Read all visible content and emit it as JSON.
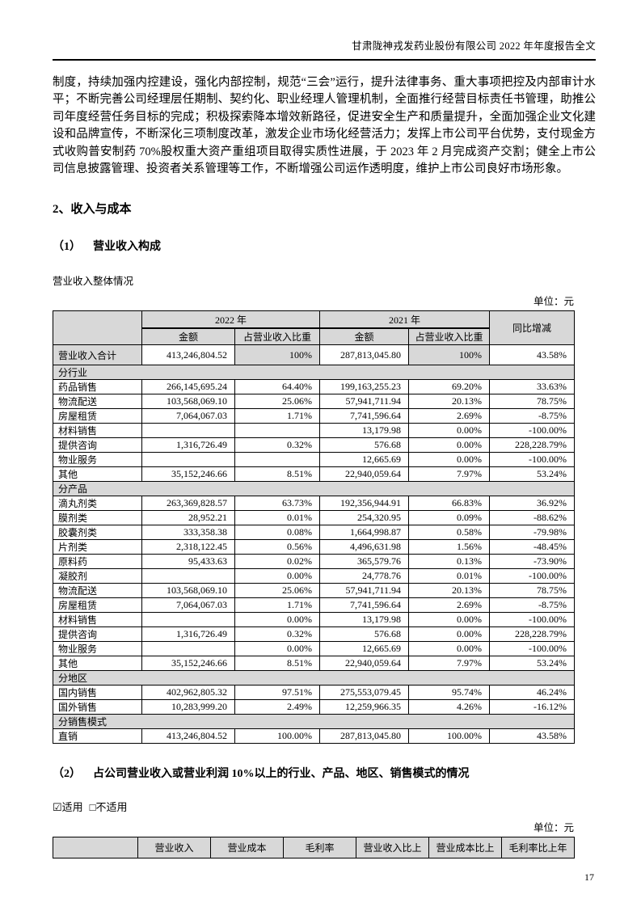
{
  "header": {
    "title": "甘肃陇神戎发药业股份有限公司 2022 年年度报告全文"
  },
  "paragraph": "制度，持续加强内控建设，强化内部控制，规范“三会”运行，提升法律事务、重大事项把控及内部审计水平；不断完善公司经理层任期制、契约化、职业经理人管理机制，全面推行经营目标责任书管理，助推公司年度经营任务目标的完成；积极探索降本增效新路径，促进安全生产和质量提升，全面加强企业文化建设和品牌宣传，不断深化三项制度改革，激发企业市场化经营活力；发挥上市公司平台优势，支付现金方式收购普安制药 70%股权重大资产重组项目取得实质性进展，于 2023 年 2 月完成资产交割；健全上市公司信息披露管理、投资者关系管理等工作，不断增强公司运作透明度，维护上市公司良好市场形象。",
  "sections": {
    "income_cost_title": "2、收入与成本",
    "sub1_num": "（1）",
    "sub1_title": "营业收入构成",
    "overall_note": "营业收入整体情况",
    "unit_label_1": "单位：元",
    "sub2_num": "（2）",
    "sub2_title": "占公司营业收入或营业利润 10%以上的行业、产品、地区、销售模式的情况",
    "applicable": "☑适用",
    "not_applicable": "□不适用",
    "unit_label_2": "单位：元"
  },
  "table1": {
    "header": {
      "y2022": "2022 年",
      "y2021": "2021 年",
      "amount": "金额",
      "pct": "占营业收入比重",
      "yoy": "同比增减"
    },
    "rows": [
      {
        "type": "total",
        "label": "营业收入合计",
        "a2022": "413,246,804.52",
        "p2022": "100%",
        "a2021": "287,813,045.80",
        "p2021": "100%",
        "yoy": "43.58%"
      },
      {
        "type": "section",
        "label": "分行业"
      },
      {
        "type": "data",
        "label": "药品销售",
        "a2022": "266,145,695.24",
        "p2022": "64.40%",
        "a2021": "199,163,255.23",
        "p2021": "69.20%",
        "yoy": "33.63%"
      },
      {
        "type": "data",
        "label": "物流配送",
        "a2022": "103,568,069.10",
        "p2022": "25.06%",
        "a2021": "57,941,711.94",
        "p2021": "20.13%",
        "yoy": "78.75%"
      },
      {
        "type": "data",
        "label": "房屋租赁",
        "a2022": "7,064,067.03",
        "p2022": "1.71%",
        "a2021": "7,741,596.64",
        "p2021": "2.69%",
        "yoy": "-8.75%"
      },
      {
        "type": "data",
        "label": "材料销售",
        "a2022": "",
        "p2022": "",
        "a2021": "13,179.98",
        "p2021": "0.00%",
        "yoy": "-100.00%"
      },
      {
        "type": "data",
        "label": "提供咨询",
        "a2022": "1,316,726.49",
        "p2022": "0.32%",
        "a2021": "576.68",
        "p2021": "0.00%",
        "yoy": "228,228.79%"
      },
      {
        "type": "data",
        "label": "物业服务",
        "a2022": "",
        "p2022": "",
        "a2021": "12,665.69",
        "p2021": "0.00%",
        "yoy": "-100.00%"
      },
      {
        "type": "data",
        "label": "其他",
        "a2022": "35,152,246.66",
        "p2022": "8.51%",
        "a2021": "22,940,059.64",
        "p2021": "7.97%",
        "yoy": "53.24%"
      },
      {
        "type": "section",
        "label": "分产品"
      },
      {
        "type": "data",
        "label": "滴丸剂类",
        "a2022": "263,369,828.57",
        "p2022": "63.73%",
        "a2021": "192,356,944.91",
        "p2021": "66.83%",
        "yoy": "36.92%"
      },
      {
        "type": "data",
        "label": "膜剂类",
        "a2022": "28,952.21",
        "p2022": "0.01%",
        "a2021": "254,320.95",
        "p2021": "0.09%",
        "yoy": "-88.62%"
      },
      {
        "type": "data",
        "label": "胶囊剂类",
        "a2022": "333,358.38",
        "p2022": "0.08%",
        "a2021": "1,664,998.87",
        "p2021": "0.58%",
        "yoy": "-79.98%"
      },
      {
        "type": "data",
        "label": "片剂类",
        "a2022": "2,318,122.45",
        "p2022": "0.56%",
        "a2021": "4,496,631.98",
        "p2021": "1.56%",
        "yoy": "-48.45%"
      },
      {
        "type": "data",
        "label": "原料药",
        "a2022": "95,433.63",
        "p2022": "0.02%",
        "a2021": "365,579.76",
        "p2021": "0.13%",
        "yoy": "-73.90%"
      },
      {
        "type": "data",
        "label": "凝胶剂",
        "a2022": "",
        "p2022": "0.00%",
        "a2021": "24,778.76",
        "p2021": "0.01%",
        "yoy": "-100.00%"
      },
      {
        "type": "data",
        "label": "物流配送",
        "a2022": "103,568,069.10",
        "p2022": "25.06%",
        "a2021": "57,941,711.94",
        "p2021": "20.13%",
        "yoy": "78.75%"
      },
      {
        "type": "data",
        "label": "房屋租赁",
        "a2022": "7,064,067.03",
        "p2022": "1.71%",
        "a2021": "7,741,596.64",
        "p2021": "2.69%",
        "yoy": "-8.75%"
      },
      {
        "type": "data",
        "label": "材料销售",
        "a2022": "",
        "p2022": "0.00%",
        "a2021": "13,179.98",
        "p2021": "0.00%",
        "yoy": "-100.00%"
      },
      {
        "type": "data",
        "label": "提供咨询",
        "a2022": "1,316,726.49",
        "p2022": "0.32%",
        "a2021": "576.68",
        "p2021": "0.00%",
        "yoy": "228,228.79%"
      },
      {
        "type": "data",
        "label": "物业服务",
        "a2022": "",
        "p2022": "0.00%",
        "a2021": "12,665.69",
        "p2021": "0.00%",
        "yoy": "-100.00%"
      },
      {
        "type": "data",
        "label": "其他",
        "a2022": "35,152,246.66",
        "p2022": "8.51%",
        "a2021": "22,940,059.64",
        "p2021": "7.97%",
        "yoy": "53.24%"
      },
      {
        "type": "section",
        "label": "分地区"
      },
      {
        "type": "data",
        "label": "国内销售",
        "a2022": "402,962,805.32",
        "p2022": "97.51%",
        "a2021": "275,553,079.45",
        "p2021": "95.74%",
        "yoy": "46.24%"
      },
      {
        "type": "data",
        "label": "国外销售",
        "a2022": "10,283,999.20",
        "p2022": "2.49%",
        "a2021": "12,259,966.35",
        "p2021": "4.26%",
        "yoy": "-16.12%"
      },
      {
        "type": "section",
        "label": "分销售模式"
      },
      {
        "type": "data",
        "label": "直销",
        "a2022": "413,246,804.52",
        "p2022": "100.00%",
        "a2021": "287,813,045.80",
        "p2021": "100.00%",
        "yoy": "43.58%"
      }
    ]
  },
  "table2": {
    "headers": [
      "",
      "营业收入",
      "营业成本",
      "毛利率",
      "营业收入比上",
      "营业成本比上",
      "毛利率比上年"
    ]
  },
  "page_number": "17"
}
